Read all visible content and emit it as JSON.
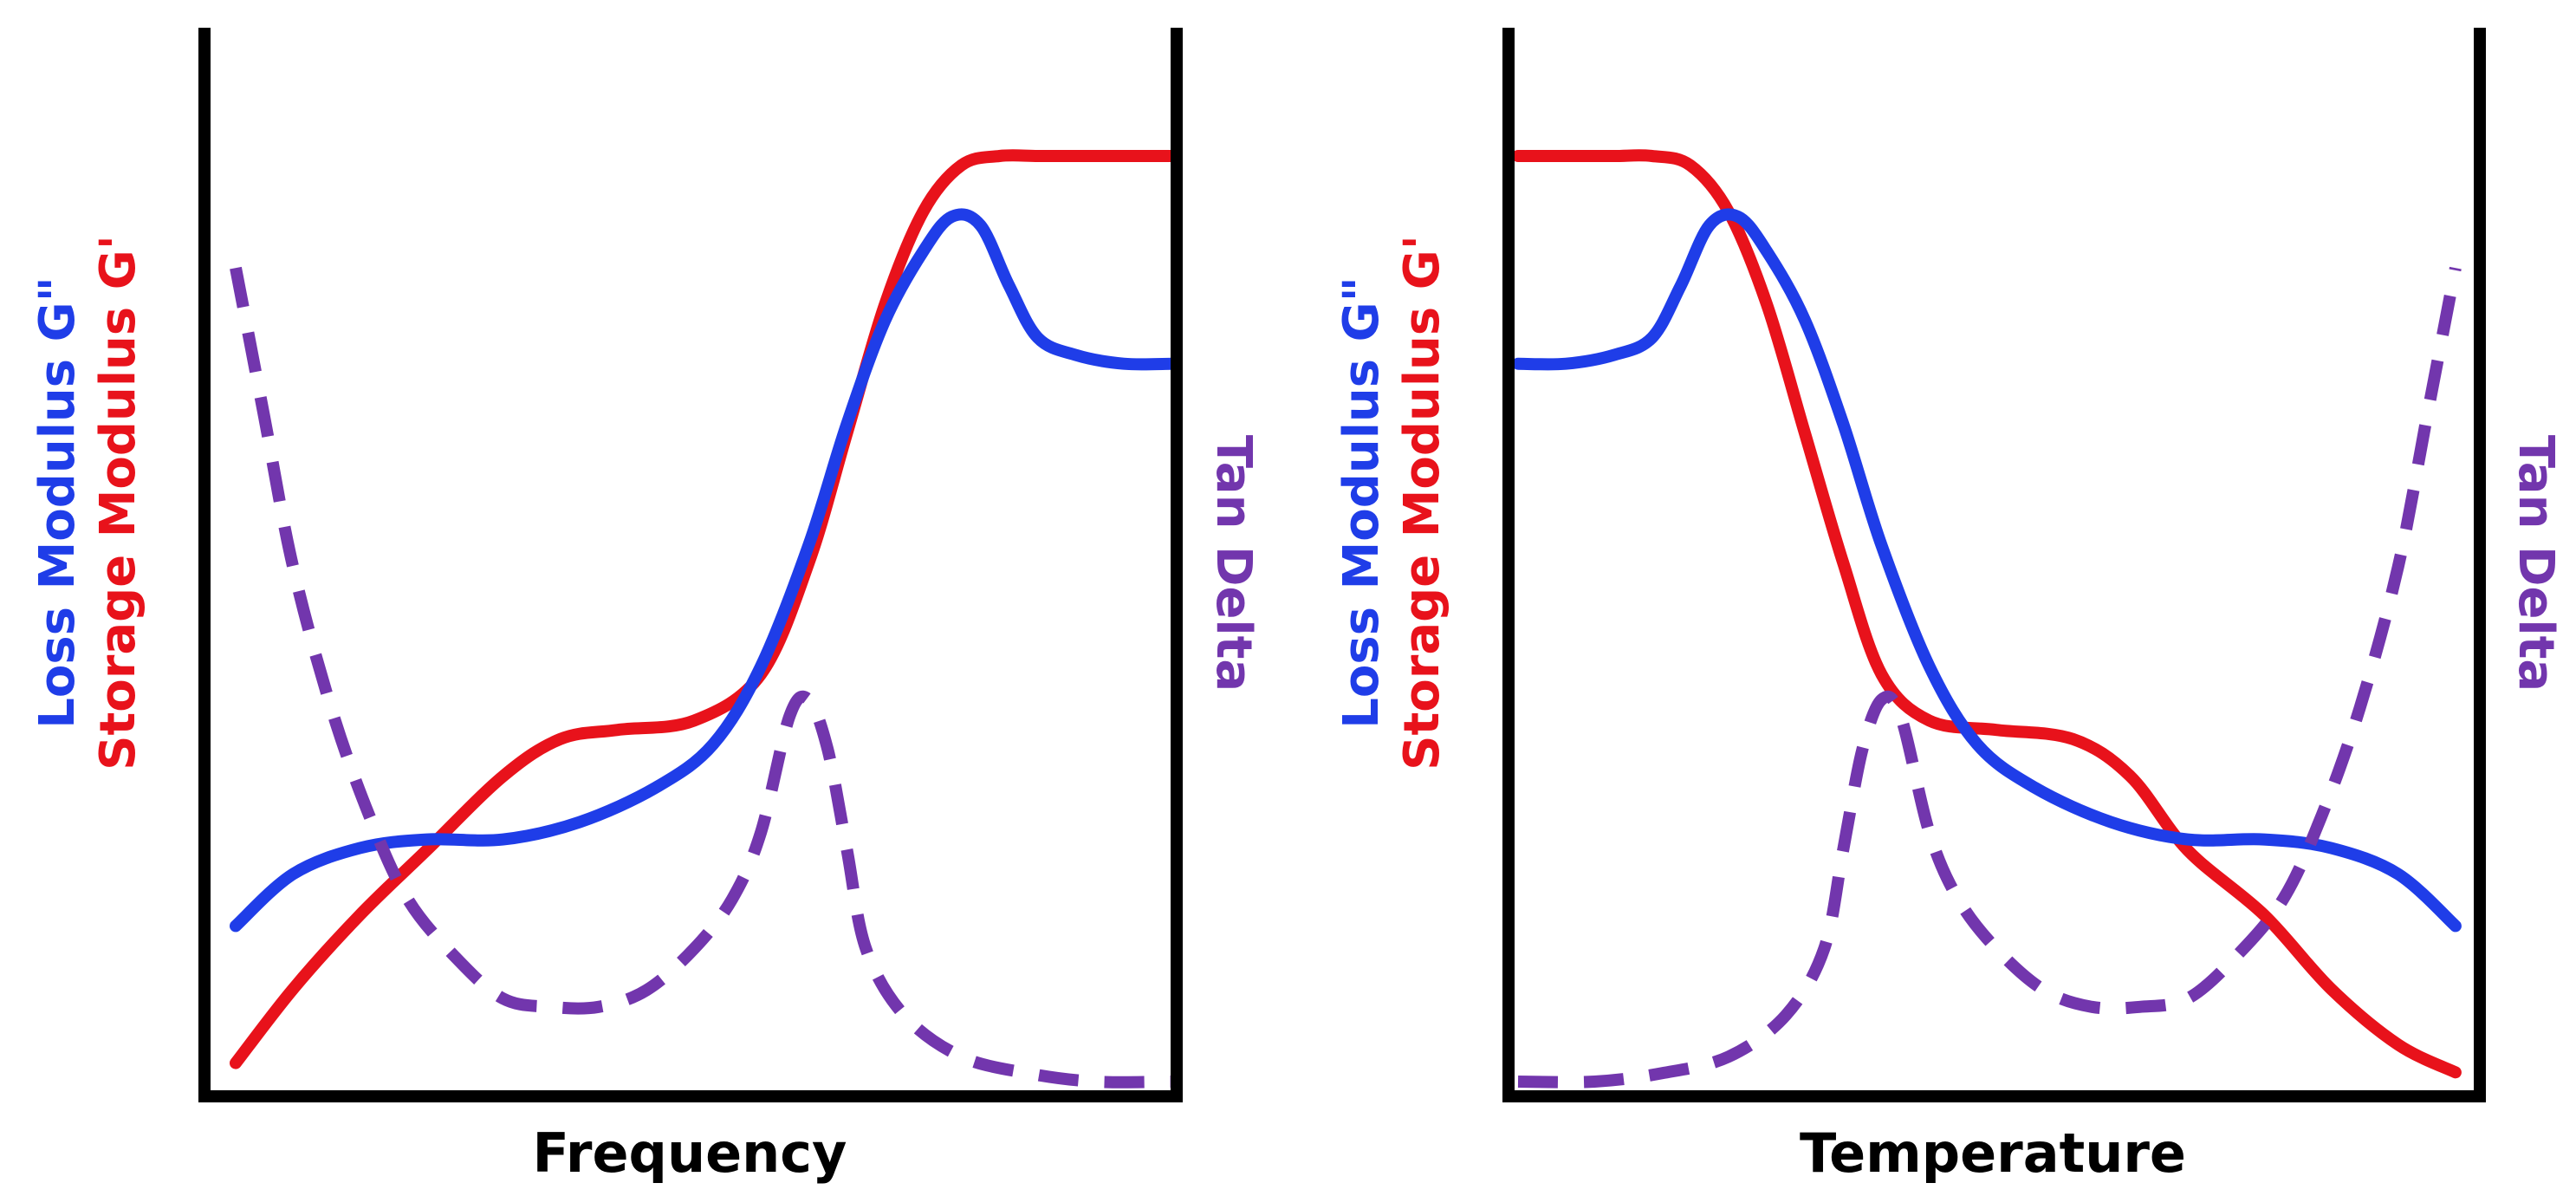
{
  "colors": {
    "storage": "#e8121b",
    "loss": "#1f3de8",
    "tan": "#7236ad",
    "axis": "#000000"
  },
  "chart_data": [
    {
      "type": "line",
      "xlabel": "Frequency",
      "ylabel_left": [
        "Storage Modulus G'",
        "Loss Modulus G\""
      ],
      "ylabel_right": "Tan Delta",
      "x_scale": "qualitative",
      "y_scale": "qualitative",
      "xlim": [
        0,
        100
      ],
      "ylim": [
        0,
        100
      ],
      "grid": false,
      "series": [
        {
          "name": "Storage Modulus G'",
          "color": "#e8121b",
          "style": "solid",
          "x": [
            2,
            8,
            15,
            22,
            30,
            36,
            42,
            50,
            57,
            62,
            66,
            70,
            74,
            78,
            82,
            86,
            90,
            95,
            100
          ],
          "y": [
            2,
            10,
            18,
            25,
            33,
            37,
            38,
            39,
            44,
            56,
            70,
            84,
            94,
            99,
            100,
            100,
            100,
            100,
            100
          ]
        },
        {
          "name": "Loss Modulus G\"",
          "color": "#1f3de8",
          "style": "solid",
          "x": [
            2,
            8,
            15,
            22,
            30,
            38,
            46,
            52,
            57,
            62,
            66,
            70,
            74,
            77,
            80,
            83,
            86,
            90,
            95,
            100
          ],
          "y": [
            18,
            24,
            27,
            28,
            28,
            30,
            34,
            39,
            48,
            62,
            76,
            88,
            96,
            100,
            99,
            92,
            86,
            84,
            83,
            83
          ]
        },
        {
          "name": "Tan Delta",
          "color": "#7236ad",
          "style": "dashed",
          "x": [
            2,
            5,
            8,
            12,
            16,
            20,
            25,
            30,
            35,
            40,
            45,
            50,
            54,
            57,
            60,
            62,
            64,
            66,
            68,
            72,
            78,
            85,
            92,
            100
          ],
          "y": [
            98,
            80,
            62,
            45,
            32,
            22,
            15,
            10,
            9,
            9,
            11,
            16,
            22,
            30,
            44,
            46,
            40,
            28,
            16,
            8,
            3,
            1,
            0,
            0
          ]
        }
      ]
    },
    {
      "type": "line",
      "xlabel": "Temperature",
      "ylabel_left": [
        "Storage Modulus G'",
        "Loss Modulus G\""
      ],
      "ylabel_right": "Tan Delta",
      "x_scale": "qualitative",
      "y_scale": "qualitative",
      "xlim": [
        0,
        100
      ],
      "ylim": [
        0,
        100
      ],
      "grid": false,
      "series": [
        {
          "name": "Storage Modulus G'",
          "color": "#e8121b",
          "style": "solid",
          "x": [
            0,
            5,
            10,
            14,
            18,
            22,
            26,
            30,
            34,
            38,
            43,
            50,
            58,
            64,
            70,
            78,
            85,
            92,
            98
          ],
          "y": [
            100,
            100,
            100,
            100,
            99,
            94,
            84,
            70,
            56,
            44,
            39,
            38,
            37,
            33,
            25,
            18,
            10,
            4,
            1
          ]
        },
        {
          "name": "Loss Modulus G\"",
          "color": "#1f3de8",
          "style": "solid",
          "x": [
            0,
            5,
            10,
            14,
            17,
            20,
            23,
            26,
            30,
            34,
            38,
            43,
            48,
            54,
            62,
            70,
            78,
            85,
            92,
            98
          ],
          "y": [
            83,
            83,
            84,
            86,
            92,
            99,
            100,
            96,
            88,
            76,
            62,
            48,
            39,
            34,
            30,
            28,
            28,
            27,
            24,
            18
          ]
        },
        {
          "name": "Tan Delta",
          "color": "#7236ad",
          "style": "dashed",
          "x": [
            0,
            8,
            15,
            22,
            28,
            32,
            34,
            36,
            38,
            40,
            43,
            46,
            50,
            55,
            60,
            65,
            70,
            75,
            80,
            84,
            88,
            92,
            95,
            98
          ],
          "y": [
            0,
            0,
            1,
            3,
            8,
            16,
            28,
            40,
            46,
            44,
            30,
            22,
            16,
            11,
            9,
            9,
            10,
            15,
            22,
            32,
            45,
            62,
            80,
            98
          ]
        }
      ]
    }
  ]
}
